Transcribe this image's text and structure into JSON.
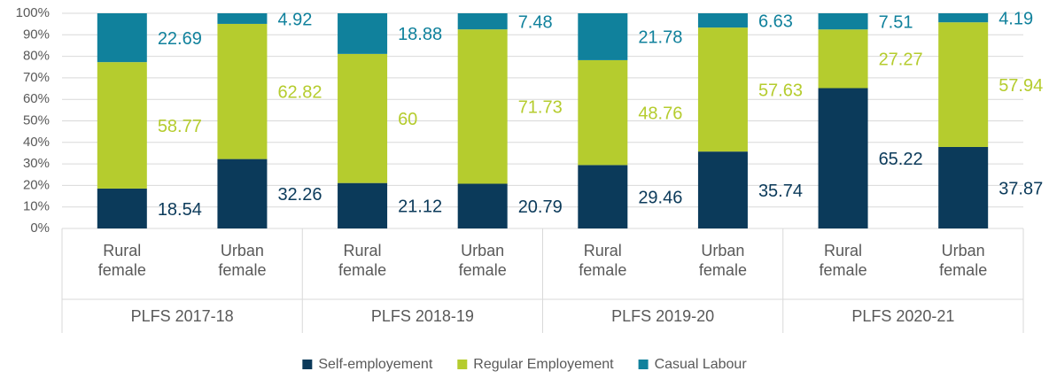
{
  "chart_data": {
    "type": "stacked_bar",
    "categories": [
      "Rural female",
      "Urban female",
      "Rural female",
      "Urban female",
      "Rural female",
      "Urban female",
      "Rural female",
      "Urban female"
    ],
    "group_labels": [
      "PLFS 2017-18",
      "PLFS 2018-19",
      "PLFS 2019-20",
      "PLFS 2020-21"
    ],
    "series": [
      {
        "name": "Self-employement",
        "color": "#0b3a5a",
        "label_color": "#0b3a5a",
        "values": [
          18.54,
          32.26,
          21.12,
          20.79,
          29.46,
          35.74,
          65.22,
          37.87
        ]
      },
      {
        "name": "Regular Employement",
        "color": "#b5cc2e",
        "label_color": "#b5cc2e",
        "values": [
          58.77,
          62.82,
          60,
          71.73,
          48.76,
          57.63,
          27.27,
          57.94
        ]
      },
      {
        "name": "Casual Labour",
        "color": "#10819c",
        "label_color": "#10819c",
        "values": [
          22.69,
          4.92,
          18.88,
          7.48,
          21.78,
          6.63,
          7.51,
          4.19
        ]
      }
    ],
    "ylim": [
      0,
      100
    ],
    "yticks": [
      {
        "value": 0,
        "label": "0%"
      },
      {
        "value": 10,
        "label": "10%"
      },
      {
        "value": 20,
        "label": "20%"
      },
      {
        "value": 30,
        "label": "30%"
      },
      {
        "value": 40,
        "label": "40%"
      },
      {
        "value": 50,
        "label": "50%"
      },
      {
        "value": 60,
        "label": "60%"
      },
      {
        "value": 70,
        "label": "70%"
      },
      {
        "value": 80,
        "label": "80%"
      },
      {
        "value": 90,
        "label": "90%"
      },
      {
        "value": 100,
        "label": "100%"
      }
    ],
    "grid": true,
    "legend": "bottom"
  }
}
